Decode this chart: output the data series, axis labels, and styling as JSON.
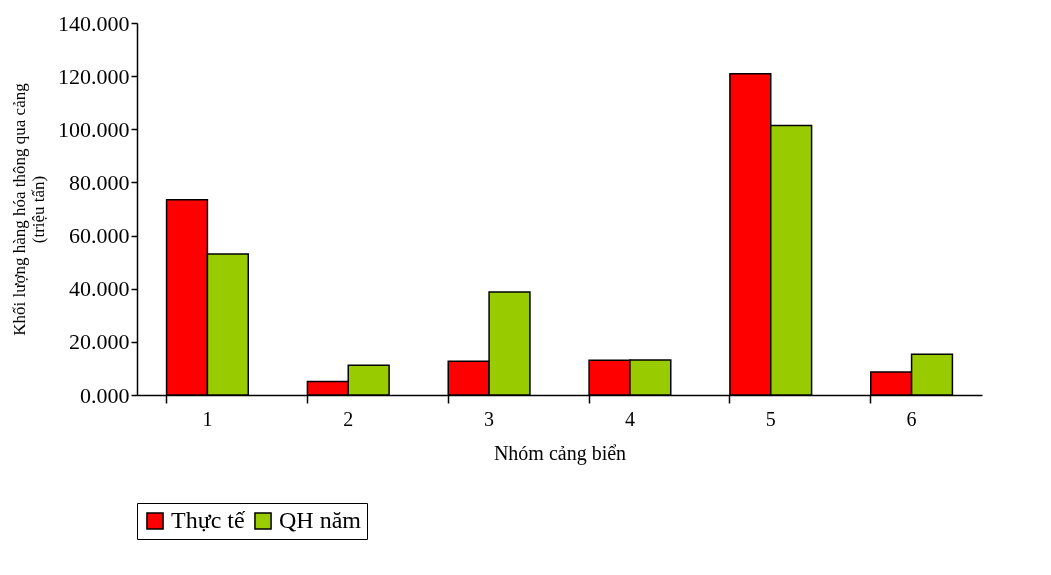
{
  "chart_data": {
    "type": "bar",
    "xlabel": "Nhóm cảng biển",
    "ylabel": "Khối lượng hàng hóa thông qua cảng\n(triệu tấn)",
    "categories": [
      "1",
      "2",
      "3",
      "4",
      "5",
      "6"
    ],
    "series": [
      {
        "name": "Thực tế",
        "color": "#ff0000",
        "values": [
          73.5,
          5.1,
          12.7,
          13.1,
          120.9,
          8.7
        ]
      },
      {
        "name": "QH năm",
        "color": "#99cc00",
        "values": [
          53.1,
          11.2,
          38.8,
          13.2,
          101.4,
          15.3
        ]
      }
    ],
    "ylim": [
      0,
      140
    ],
    "yticks": [
      {
        "value": 0,
        "label": "0.000"
      },
      {
        "value": 20,
        "label": "20.000"
      },
      {
        "value": 40,
        "label": "40.000"
      },
      {
        "value": 60,
        "label": "60.000"
      },
      {
        "value": 80,
        "label": "80.000"
      },
      {
        "value": 100,
        "label": "100.000"
      },
      {
        "value": 120,
        "label": "120.000"
      },
      {
        "value": 140,
        "label": "140.000"
      }
    ],
    "grid": false,
    "legend": "bottom"
  }
}
